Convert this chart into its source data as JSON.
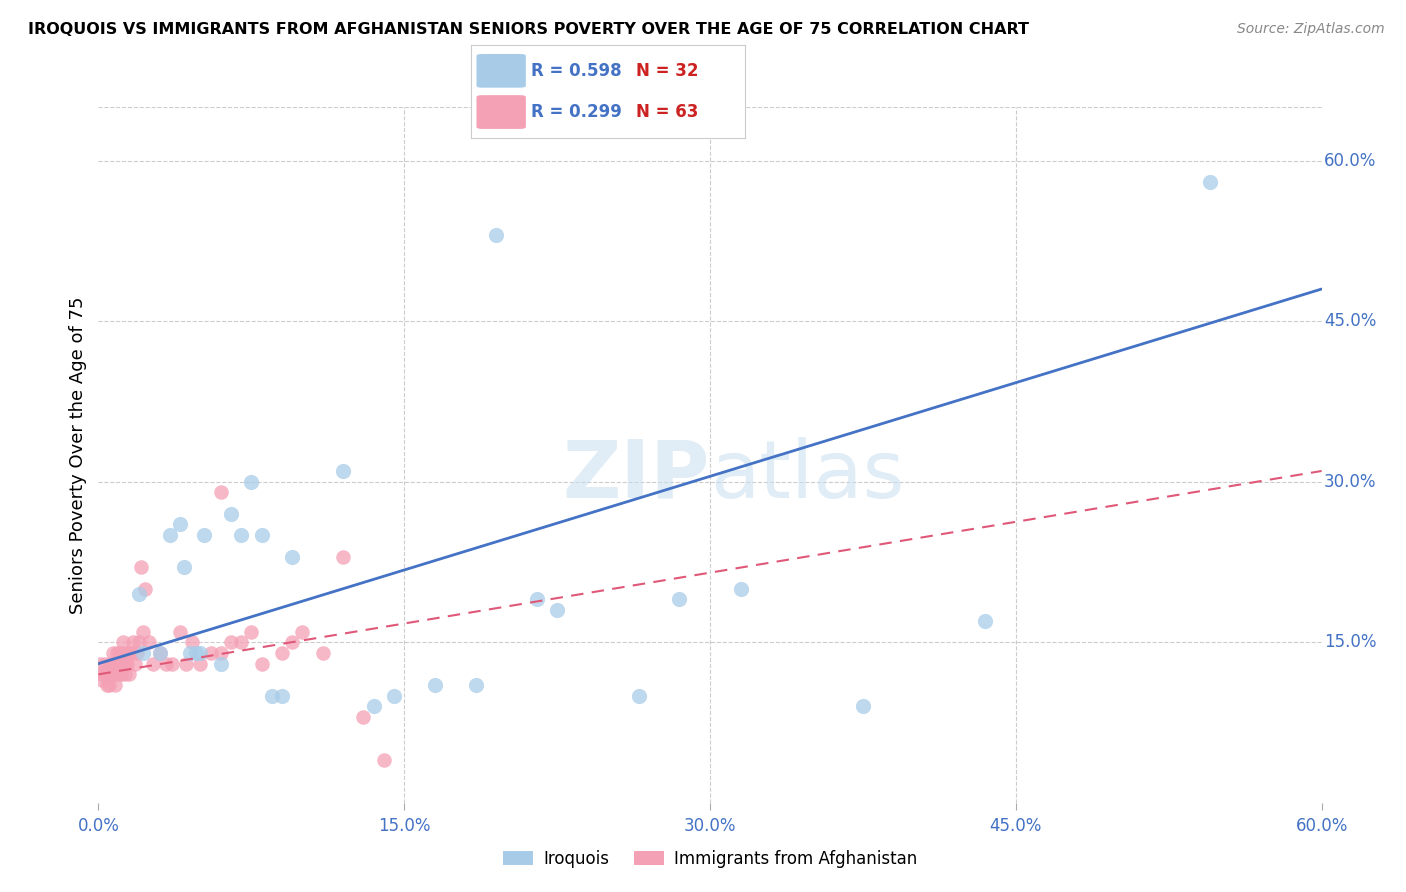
{
  "title": "IROQUOIS VS IMMIGRANTS FROM AFGHANISTAN SENIORS POVERTY OVER THE AGE OF 75 CORRELATION CHART",
  "source": "Source: ZipAtlas.com",
  "ylabel": "Seniors Poverty Over the Age of 75",
  "xlim": [
    0.0,
    0.6
  ],
  "ylim": [
    0.0,
    0.65
  ],
  "xticks": [
    0.0,
    0.15,
    0.3,
    0.45,
    0.6
  ],
  "yticks_right": [
    0.15,
    0.3,
    0.45,
    0.6
  ],
  "ytick_labels_right": [
    "15.0%",
    "30.0%",
    "45.0%",
    "60.0%"
  ],
  "xtick_labels": [
    "0.0%",
    "15.0%",
    "30.0%",
    "45.0%",
    "60.0%"
  ],
  "legend1_label": "Iroquois",
  "legend2_label": "Immigrants from Afghanistan",
  "R1": 0.598,
  "N1": 32,
  "R2": 0.299,
  "N2": 63,
  "color_blue": "#a8cce8",
  "color_pink": "#f4a0b5",
  "color_blue_dark": "#4472c4",
  "color_pink_dark": "#e05878",
  "watermark_color": "#c8dff0",
  "iroquois_x": [
    0.02,
    0.022,
    0.03,
    0.035,
    0.04,
    0.042,
    0.045,
    0.048,
    0.05,
    0.052,
    0.06,
    0.065,
    0.07,
    0.075,
    0.08,
    0.085,
    0.09,
    0.095,
    0.12,
    0.135,
    0.145,
    0.165,
    0.185,
    0.195,
    0.215,
    0.225,
    0.265,
    0.285,
    0.315,
    0.375,
    0.435,
    0.545
  ],
  "iroquois_y": [
    0.195,
    0.14,
    0.14,
    0.25,
    0.26,
    0.22,
    0.14,
    0.14,
    0.14,
    0.25,
    0.13,
    0.27,
    0.25,
    0.3,
    0.25,
    0.1,
    0.1,
    0.23,
    0.31,
    0.09,
    0.1,
    0.11,
    0.11,
    0.53,
    0.19,
    0.18,
    0.1,
    0.19,
    0.2,
    0.09,
    0.17,
    0.58
  ],
  "afghanistan_x": [
    0.001,
    0.002,
    0.002,
    0.003,
    0.003,
    0.004,
    0.004,
    0.005,
    0.005,
    0.006,
    0.006,
    0.006,
    0.007,
    0.007,
    0.007,
    0.008,
    0.008,
    0.009,
    0.009,
    0.01,
    0.01,
    0.01,
    0.011,
    0.011,
    0.012,
    0.012,
    0.013,
    0.013,
    0.014,
    0.014,
    0.015,
    0.015,
    0.016,
    0.017,
    0.018,
    0.019,
    0.02,
    0.021,
    0.022,
    0.023,
    0.025,
    0.027,
    0.03,
    0.033,
    0.036,
    0.04,
    0.043,
    0.046,
    0.05,
    0.055,
    0.06,
    0.065,
    0.07,
    0.075,
    0.08,
    0.09,
    0.095,
    0.1,
    0.11,
    0.12,
    0.13,
    0.14,
    0.06
  ],
  "afghanistan_y": [
    0.13,
    0.12,
    0.115,
    0.13,
    0.12,
    0.12,
    0.11,
    0.12,
    0.11,
    0.13,
    0.12,
    0.13,
    0.14,
    0.13,
    0.12,
    0.12,
    0.11,
    0.13,
    0.14,
    0.12,
    0.13,
    0.14,
    0.13,
    0.12,
    0.14,
    0.15,
    0.12,
    0.13,
    0.14,
    0.13,
    0.14,
    0.12,
    0.14,
    0.15,
    0.13,
    0.14,
    0.15,
    0.22,
    0.16,
    0.2,
    0.15,
    0.13,
    0.14,
    0.13,
    0.13,
    0.16,
    0.13,
    0.15,
    0.13,
    0.14,
    0.14,
    0.15,
    0.15,
    0.16,
    0.13,
    0.14,
    0.15,
    0.16,
    0.14,
    0.23,
    0.08,
    0.04,
    0.29
  ],
  "blue_line_x": [
    0.0,
    0.6
  ],
  "blue_line_y": [
    0.13,
    0.48
  ],
  "pink_line_x": [
    0.0,
    0.6
  ],
  "pink_line_y": [
    0.12,
    0.31
  ]
}
